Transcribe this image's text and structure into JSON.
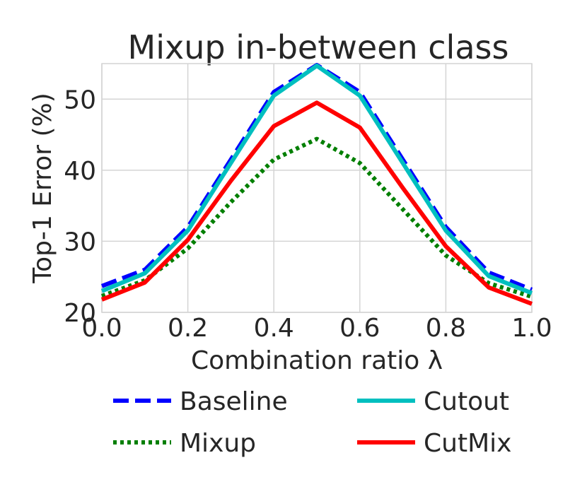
{
  "chart_data": {
    "type": "line",
    "title": "Mixup in-between class",
    "xlabel": "Combination ratio λ",
    "ylabel": "Top-1 Error (%)",
    "xlim": [
      0.0,
      1.0
    ],
    "ylim": [
      20,
      55
    ],
    "x_ticks": [
      0.0,
      0.2,
      0.4,
      0.6,
      0.8,
      1.0
    ],
    "x_tick_labels": [
      "0.0",
      "0.2",
      "0.4",
      "0.6",
      "0.8",
      "1.0"
    ],
    "y_ticks": [
      20,
      30,
      40,
      50
    ],
    "y_tick_labels": [
      "20",
      "30",
      "40",
      "50"
    ],
    "grid": true,
    "legend_position": "bottom",
    "x": [
      0.0,
      0.1,
      0.2,
      0.3,
      0.4,
      0.5,
      0.6,
      0.7,
      0.8,
      0.9,
      1.0
    ],
    "series": [
      {
        "name": "Baseline",
        "color": "#0000ff",
        "dash": "dashed",
        "values": [
          23.7,
          26.0,
          32.0,
          41.5,
          51.0,
          54.8,
          51.0,
          41.5,
          32.0,
          25.6,
          23.2
        ]
      },
      {
        "name": "Mixup",
        "color": "#007f00",
        "dash": "dotted",
        "values": [
          22.3,
          24.5,
          29.0,
          35.5,
          41.5,
          44.4,
          41.0,
          34.5,
          28.0,
          24.1,
          22.2
        ]
      },
      {
        "name": "Cutout",
        "color": "#00bfbf",
        "dash": "solid",
        "values": [
          23.0,
          25.5,
          31.5,
          41.0,
          50.5,
          54.7,
          50.5,
          41.0,
          31.5,
          25.1,
          22.7
        ]
      },
      {
        "name": "CutMix",
        "color": "#ff0000",
        "dash": "solid",
        "values": [
          21.8,
          24.2,
          30.2,
          38.5,
          46.2,
          49.5,
          46.0,
          37.5,
          29.3,
          23.5,
          21.2
        ]
      }
    ]
  }
}
